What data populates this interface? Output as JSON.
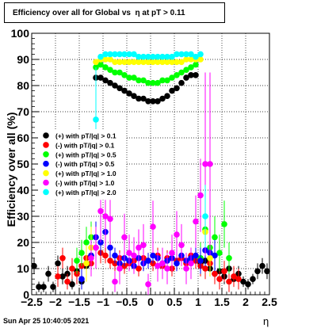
{
  "chart_data": {
    "type": "scatter",
    "title": "Efficiency over all for Global vs  η at pT > 0.11",
    "xlabel": "η",
    "ylabel": "Efficiency over all (%)",
    "xlim": [
      -2.5,
      2.5
    ],
    "ylim": [
      0,
      100
    ],
    "x_ticks": [
      -2.5,
      -2,
      -1.5,
      -1,
      -0.5,
      0,
      0.5,
      1,
      1.5,
      2,
      2.5
    ],
    "x_tick_labels": [
      "−2.5",
      "−2",
      "−1.5",
      "−1",
      "−0.5",
      "0",
      "0.5",
      "1",
      "1.5",
      "2",
      "2.5"
    ],
    "y_ticks": [
      0,
      10,
      20,
      30,
      40,
      50,
      60,
      70,
      80,
      90,
      100
    ],
    "y_tick_labels": [
      "0",
      "10",
      "20",
      "30",
      "40",
      "50",
      "60",
      "70",
      "80",
      "90",
      "100"
    ],
    "grid": true,
    "legend_position": "middle-left",
    "footer": "Sun Apr 25 10:40:05 2021",
    "series": [
      {
        "name": "(+) with pT/|q| > 0.1",
        "color": "#000000",
        "x": [
          -2.45,
          -2.35,
          -2.25,
          -2.15,
          -2.05,
          -1.95,
          -1.85,
          -1.75,
          -1.65,
          -1.55,
          -1.45,
          -1.35,
          -1.25,
          -1.15,
          -1.05,
          -0.95,
          -0.85,
          -0.75,
          -0.65,
          -0.55,
          -0.45,
          -0.35,
          -0.25,
          -0.15,
          -0.05,
          0.05,
          0.15,
          0.25,
          0.35,
          0.45,
          0.55,
          0.65,
          0.75,
          0.85,
          0.95,
          1.05,
          1.15,
          1.25,
          1.35,
          1.45,
          1.55,
          1.65,
          1.75,
          1.85,
          1.95,
          2.05,
          2.15,
          2.25,
          2.35,
          2.45
        ],
        "y": [
          11,
          3,
          3,
          8,
          3,
          12,
          7,
          8,
          4,
          9,
          5,
          11,
          15,
          83,
          83,
          82,
          81,
          80,
          79,
          78,
          77,
          76,
          75,
          75,
          74,
          74,
          74,
          75,
          76,
          78,
          79,
          81,
          83,
          84,
          84,
          12,
          13,
          10,
          8,
          9,
          7,
          10,
          6,
          8,
          5,
          4,
          6,
          9,
          11,
          9
        ],
        "err": [
          3,
          2,
          2,
          3,
          2,
          3,
          3,
          3,
          2,
          3,
          2,
          3,
          4,
          1,
          1,
          1,
          1,
          1,
          1,
          1,
          1,
          1,
          1,
          1,
          1,
          1,
          1,
          1,
          1,
          1,
          1,
          1,
          1,
          1,
          1,
          3,
          3,
          3,
          3,
          3,
          3,
          3,
          2,
          3,
          2,
          2,
          2,
          3,
          3,
          3
        ]
      },
      {
        "name": "(-) with pT/|q| > 0.1",
        "color": "#ff0000",
        "x": [
          -1.95,
          -1.85,
          -1.75,
          -1.65,
          -1.55,
          -1.45,
          -1.35,
          -1.25,
          -1.15,
          -1.05,
          -0.95,
          -0.85,
          -0.75,
          -0.65,
          -0.55,
          -0.45,
          -0.35,
          -0.25,
          -0.15,
          -0.05,
          0.05,
          0.15,
          0.25,
          0.35,
          0.45,
          0.55,
          0.65,
          0.75,
          0.85,
          0.95,
          1.05,
          1.15,
          1.25,
          1.35,
          1.45,
          1.55,
          1.65,
          1.75,
          1.85
        ],
        "y": [
          7,
          14,
          5,
          10,
          8,
          11,
          14,
          12,
          18,
          16,
          15,
          13,
          12,
          14,
          11,
          12,
          13,
          10,
          14,
          13,
          12,
          15,
          11,
          14,
          10,
          13,
          14,
          12,
          15,
          13,
          11,
          10,
          12,
          8,
          6,
          9,
          5,
          7,
          6
        ],
        "err": [
          4,
          4,
          3,
          4,
          4,
          4,
          4,
          4,
          4,
          4,
          3,
          3,
          3,
          3,
          3,
          3,
          3,
          3,
          3,
          3,
          3,
          3,
          3,
          3,
          3,
          3,
          3,
          3,
          3,
          3,
          4,
          4,
          4,
          4,
          4,
          4,
          4,
          4,
          4
        ]
      },
      {
        "name": "(+) with pT/|q| > 0.5",
        "color": "#00ff00",
        "x": [
          -1.55,
          -1.45,
          -1.35,
          -1.25,
          -1.15,
          -1.05,
          -0.95,
          -0.85,
          -0.75,
          -0.65,
          -0.55,
          -0.45,
          -0.35,
          -0.25,
          -0.15,
          -0.05,
          0.05,
          0.15,
          0.25,
          0.35,
          0.45,
          0.55,
          0.65,
          0.75,
          0.85,
          0.95,
          1.05,
          1.15,
          1.25,
          1.35,
          1.45,
          1.55,
          1.65
        ],
        "y": [
          13,
          16,
          20,
          22,
          87,
          88,
          87,
          86,
          85,
          85,
          84,
          83,
          83,
          82,
          82,
          81,
          81,
          81,
          82,
          82,
          83,
          84,
          85,
          86,
          87,
          88,
          14,
          25,
          18,
          22,
          16,
          27,
          14
        ],
        "err": [
          5,
          5,
          6,
          6,
          1,
          1,
          1,
          1,
          1,
          1,
          1,
          1,
          1,
          1,
          1,
          1,
          1,
          1,
          1,
          1,
          1,
          1,
          1,
          1,
          1,
          1,
          6,
          8,
          7,
          8,
          7,
          9,
          6
        ]
      },
      {
        "name": "(-) with pT/|q| > 0.5",
        "color": "#0000ff",
        "x": [
          -1.45,
          -1.35,
          -1.25,
          -1.15,
          -1.05,
          -0.95,
          -0.85,
          -0.75,
          -0.65,
          -0.55,
          -0.45,
          -0.35,
          -0.25,
          -0.15,
          -0.05,
          0.05,
          0.15,
          0.25,
          0.35,
          0.45,
          0.55,
          0.65,
          0.75,
          0.85,
          0.95,
          1.05,
          1.15,
          1.25,
          1.35
        ],
        "y": [
          6,
          12,
          15,
          22,
          20,
          24,
          18,
          15,
          12,
          14,
          13,
          11,
          14,
          12,
          13,
          15,
          14,
          12,
          13,
          14,
          12,
          15,
          13,
          14,
          15,
          13,
          17,
          16,
          15
        ],
        "err": [
          4,
          5,
          6,
          6,
          5,
          5,
          4,
          3,
          3,
          3,
          3,
          3,
          3,
          3,
          3,
          3,
          3,
          3,
          3,
          3,
          3,
          3,
          3,
          3,
          3,
          5,
          6,
          6,
          6
        ]
      },
      {
        "name": "(+) with pT/|q| > 1.0",
        "color": "#ffff00",
        "x": [
          -1.35,
          -1.25,
          -1.15,
          -1.05,
          -0.95,
          -0.85,
          -0.75,
          -0.65,
          -0.55,
          -0.45,
          -0.35,
          -0.25,
          -0.15,
          -0.05,
          0.05,
          0.15,
          0.25,
          0.35,
          0.45,
          0.55,
          0.65,
          0.75,
          0.85,
          0.95,
          1.05,
          1.15,
          1.25
        ],
        "y": [
          12,
          18,
          89,
          90,
          90,
          90,
          89,
          89,
          89,
          89,
          89,
          89,
          89,
          89,
          89,
          89,
          89,
          89,
          89,
          89,
          89,
          90,
          90,
          90,
          90,
          24,
          14
        ],
        "err": [
          7,
          8,
          1,
          1,
          1,
          1,
          1,
          1,
          1,
          1,
          1,
          1,
          1,
          1,
          1,
          1,
          1,
          1,
          1,
          1,
          1,
          1,
          1,
          1,
          1,
          9,
          7
        ]
      },
      {
        "name": "(-) with pT/|q| > 1.0",
        "color": "#ff00ff",
        "x": [
          -1.25,
          -1.15,
          -1.05,
          -0.95,
          -0.85,
          -0.75,
          -0.65,
          -0.55,
          -0.45,
          -0.35,
          -0.25,
          -0.15,
          -0.05,
          0.05,
          0.15,
          0.25,
          0.35,
          0.45,
          0.55,
          0.65,
          0.75,
          0.85,
          0.95,
          1.05,
          1.15,
          1.25
        ],
        "y": [
          14,
          18,
          32,
          30,
          29,
          5,
          10,
          22,
          16,
          15,
          18,
          19,
          4,
          26,
          11,
          12,
          10,
          16,
          23,
          19,
          10,
          12,
          28,
          38,
          50,
          50
        ],
        "err": [
          7,
          8,
          12,
          12,
          10,
          4,
          6,
          9,
          7,
          7,
          7,
          8,
          4,
          10,
          6,
          6,
          6,
          7,
          9,
          8,
          6,
          6,
          10,
          14,
          35,
          35
        ]
      },
      {
        "name": "(+) with pT/|q| > 2.0",
        "color": "#00ffff",
        "x": [
          -1.15,
          -1.05,
          -0.95,
          -0.85,
          -0.75,
          -0.65,
          -0.55,
          -0.45,
          -0.35,
          -0.25,
          -0.15,
          -0.05,
          0.05,
          0.15,
          0.25,
          0.35,
          0.45,
          0.55,
          0.65,
          0.75,
          0.85,
          0.95,
          1.05,
          1.15
        ],
        "y": [
          67,
          91,
          92,
          92,
          92,
          92,
          92,
          92,
          92,
          91,
          91,
          91,
          91,
          91,
          91,
          91,
          91,
          92,
          92,
          92,
          92,
          91,
          92,
          30
        ],
        "err": [
          20,
          1,
          1,
          1,
          1,
          1,
          1,
          1,
          1,
          1,
          1,
          1,
          1,
          1,
          1,
          1,
          1,
          1,
          1,
          1,
          1,
          1,
          1,
          12
        ]
      }
    ]
  }
}
